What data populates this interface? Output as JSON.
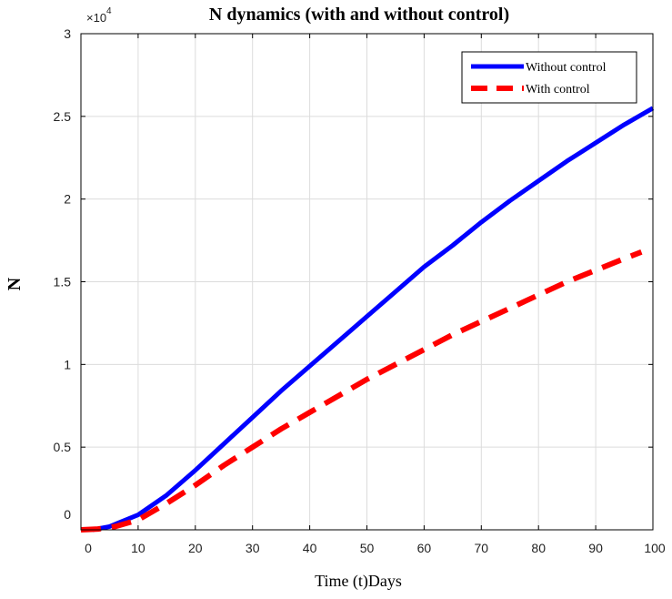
{
  "chart_data": {
    "type": "line",
    "title": "N dynamics (with and without control)",
    "xlabel": "Time (t)Days",
    "ylabel": "N",
    "y_multiplier": "×10",
    "y_exponent": "4",
    "xlim": [
      0,
      100
    ],
    "ylim": [
      0,
      3
    ],
    "x_ticks": [
      "0",
      "10",
      "20",
      "30",
      "40",
      "50",
      "60",
      "70",
      "80",
      "90",
      "100"
    ],
    "y_ticks": [
      "0",
      "0.5",
      "1",
      "1.5",
      "2",
      "2.5",
      "3"
    ],
    "grid": true,
    "legend_position": "top-right",
    "series": [
      {
        "name": "Without control",
        "color": "#0000ff",
        "style": "solid",
        "x": [
          2,
          5,
          10,
          15,
          20,
          25,
          30,
          35,
          40,
          45,
          50,
          55,
          60,
          65,
          70,
          75,
          80,
          85,
          90,
          95,
          100
        ],
        "y": [
          0,
          0.02,
          0.09,
          0.21,
          0.36,
          0.52,
          0.68,
          0.84,
          0.99,
          1.14,
          1.29,
          1.44,
          1.59,
          1.72,
          1.86,
          1.99,
          2.11,
          2.23,
          2.34,
          2.45,
          2.55
        ]
      },
      {
        "name": "With control",
        "color": "#ff0000",
        "style": "dashed",
        "x": [
          0,
          3,
          6,
          10,
          15,
          20,
          25,
          30,
          35,
          40,
          45,
          50,
          55,
          60,
          65,
          70,
          75,
          80,
          85,
          90,
          95,
          98
        ],
        "y": [
          0,
          0.005,
          0.02,
          0.06,
          0.16,
          0.27,
          0.39,
          0.5,
          0.61,
          0.71,
          0.81,
          0.91,
          1.0,
          1.09,
          1.18,
          1.26,
          1.34,
          1.42,
          1.5,
          1.57,
          1.64,
          1.68
        ]
      }
    ]
  }
}
